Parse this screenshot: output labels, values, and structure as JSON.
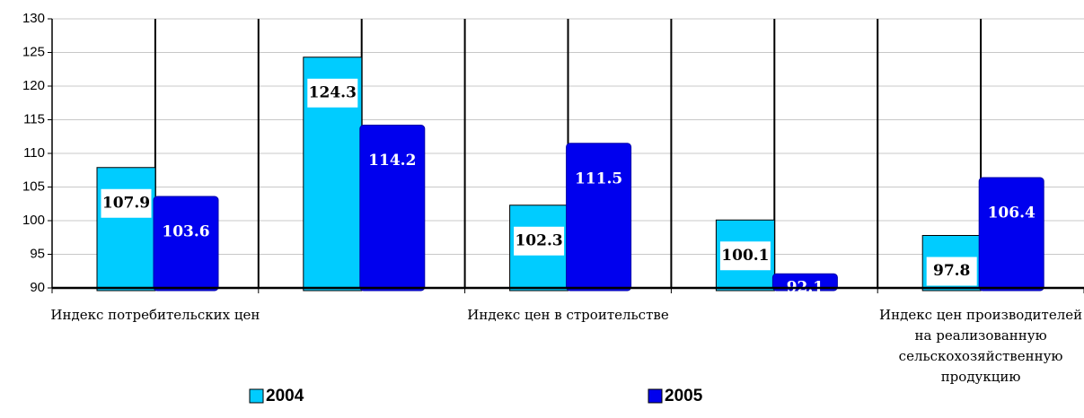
{
  "chart_data": {
    "type": "bar",
    "categories": [
      "Индекс потребительских цен",
      null,
      "Индекс цен в строительстве",
      null,
      "Индекс цен производителей на реализованную сельскохозяйственную продукцию"
    ],
    "series": [
      {
        "name": "2004",
        "color": "#00ccff",
        "values": [
          107.9,
          124.3,
          102.3,
          100.1,
          97.8
        ]
      },
      {
        "name": "2005",
        "color": "#0000ee",
        "values": [
          103.6,
          114.2,
          111.5,
          92.1,
          106.4
        ]
      }
    ],
    "ylim": [
      90,
      130
    ],
    "yticks": [
      90,
      95,
      100,
      105,
      110,
      115,
      120,
      125,
      130
    ],
    "grid": true
  }
}
